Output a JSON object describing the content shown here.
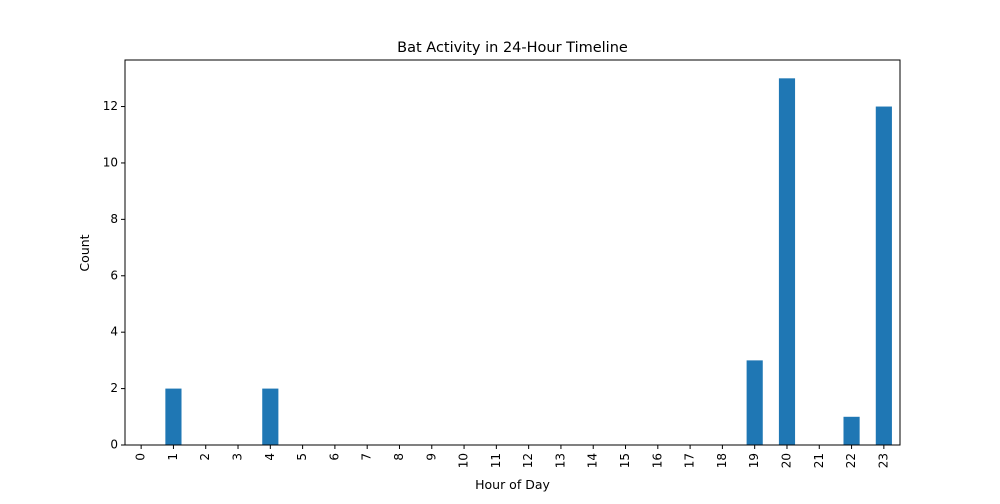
{
  "chart_data": {
    "type": "bar",
    "title": "Bat Activity in 24-Hour Timeline",
    "xlabel": "Hour of Day",
    "ylabel": "Count",
    "categories": [
      "0",
      "1",
      "2",
      "3",
      "4",
      "5",
      "6",
      "7",
      "8",
      "9",
      "10",
      "11",
      "12",
      "13",
      "14",
      "15",
      "16",
      "17",
      "18",
      "19",
      "20",
      "21",
      "22",
      "23"
    ],
    "values": [
      0,
      2,
      0,
      0,
      2,
      0,
      0,
      0,
      0,
      0,
      0,
      0,
      0,
      0,
      0,
      0,
      0,
      0,
      0,
      3,
      13,
      0,
      1,
      12
    ],
    "ylim": [
      0,
      13.65
    ],
    "yticks": [
      "0",
      "2",
      "4",
      "6",
      "8",
      "10",
      "12"
    ],
    "bar_color": "#1f77b4",
    "grid": false,
    "legend": "none"
  }
}
